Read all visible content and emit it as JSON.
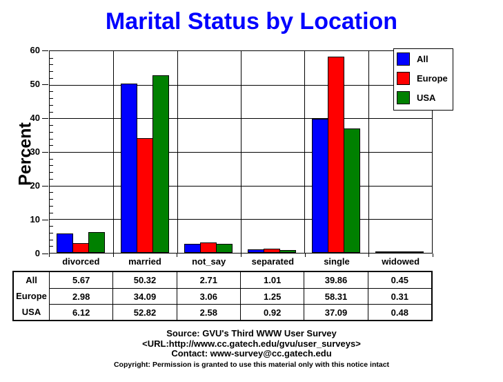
{
  "title": "Marital Status by Location",
  "title_color": "#0000ff",
  "y_axis": {
    "label": "Percent",
    "min": 0,
    "max": 60,
    "major_step": 10,
    "minor_step": 2,
    "major_ticks": [
      "0",
      "10",
      "20",
      "30",
      "40",
      "50",
      "60"
    ]
  },
  "chart_data": {
    "type": "bar",
    "title": "Marital Status by Location",
    "xlabel": "",
    "ylabel": "Percent",
    "ylim": [
      0,
      60
    ],
    "grid": true,
    "legend_position": "top-right",
    "categories": [
      "divorced",
      "married",
      "not_say",
      "separated",
      "single",
      "widowed"
    ],
    "series": [
      {
        "name": "All",
        "color": "#0000ff",
        "values": [
          5.67,
          50.32,
          2.71,
          1.01,
          39.86,
          0.45
        ]
      },
      {
        "name": "Europe",
        "color": "#ff0000",
        "values": [
          2.98,
          34.09,
          3.06,
          1.25,
          58.31,
          0.31
        ]
      },
      {
        "name": "USA",
        "color": "#008000",
        "values": [
          6.12,
          52.82,
          2.58,
          0.92,
          37.09,
          0.48
        ]
      }
    ]
  },
  "table": {
    "row_labels": [
      "All",
      "Europe",
      "USA"
    ],
    "columns": [
      "divorced",
      "married",
      "not_say",
      "separated",
      "single",
      "widowed"
    ],
    "rows": [
      [
        "5.67",
        "50.32",
        "2.71",
        "1.01",
        "39.86",
        "0.45"
      ],
      [
        "2.98",
        "34.09",
        "3.06",
        "1.25",
        "58.31",
        "0.31"
      ],
      [
        "6.12",
        "52.82",
        "2.58",
        "0.92",
        "37.09",
        "0.48"
      ]
    ]
  },
  "footer": {
    "source": "Source: GVU's Third WWW User Survey",
    "url": "<URL:http://www.cc.gatech.edu/gvu/user_surveys>",
    "contact": "Contact: www-survey@cc.gatech.edu",
    "copyright": "Copyright: Permission is granted to use this material only with this notice intact"
  }
}
